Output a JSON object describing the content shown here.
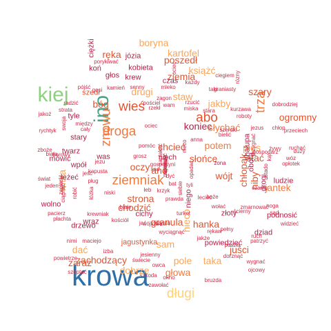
{
  "palette": {
    "blue": "#2f6fa8",
    "green": "#8fcf82",
    "teal": "#4aa389",
    "orange": "#f07a3f",
    "dark_orange": "#e3532f",
    "light_orange": "#f9a55a",
    "yellow": "#fcd277",
    "red": "#cf2b47",
    "dark_red": "#b01f45"
  },
  "words": [
    {
      "text": "krowa",
      "tier": 1,
      "color": "blue"
    },
    {
      "text": "ino",
      "tier": 2,
      "color": "teal",
      "vertical": true
    },
    {
      "text": "kiej",
      "tier": 2,
      "color": "green"
    },
    {
      "text": "długi",
      "tier": 3,
      "color": "yellow"
    },
    {
      "text": "droga",
      "tier": 3,
      "color": "orange"
    },
    {
      "text": "ziemniak",
      "tier": 3,
      "color": "orange"
    },
    {
      "text": "wieś",
      "tier": 3,
      "color": "dark_orange"
    },
    {
      "text": "abo",
      "tier": 3,
      "color": "dark_orange"
    },
    {
      "text": "trza",
      "tier": 3,
      "color": "orange",
      "vertical": true
    },
    {
      "text": "znowu",
      "tier": 3,
      "color": "orange",
      "vertical": true
    },
    {
      "text": "kartofel",
      "tier": 4,
      "color": "light_orange"
    },
    {
      "text": "boryna",
      "tier": 4,
      "color": "light_orange"
    },
    {
      "text": "ręka",
      "tier": 4,
      "color": "dark_orange"
    },
    {
      "text": "ziemia",
      "tier": 4,
      "color": "dark_orange"
    },
    {
      "text": "książć",
      "tier": 4,
      "color": "light_orange"
    },
    {
      "text": "poszedł",
      "tier": 4,
      "color": "dark_orange"
    },
    {
      "text": "bóg",
      "tier": 4,
      "color": "dark_orange"
    },
    {
      "text": "drugi",
      "tier": 4,
      "color": "light_orange"
    },
    {
      "text": "staw",
      "tier": 4,
      "color": "light_orange"
    },
    {
      "text": "słychać",
      "tier": 4,
      "color": "orange"
    },
    {
      "text": "szary",
      "tier": 4,
      "color": "dark_orange"
    },
    {
      "text": "ogromny",
      "tier": 4,
      "color": "dark_orange"
    },
    {
      "text": "jakby",
      "tier": 4,
      "color": "light_orange"
    },
    {
      "text": "koniec",
      "tier": 4,
      "color": "dark_red"
    },
    {
      "text": "potem",
      "tier": 4,
      "color": "orange"
    },
    {
      "text": "słońce",
      "tier": 4,
      "color": "dark_orange"
    },
    {
      "text": "chcieć",
      "tier": 4,
      "color": "dark_orange"
    },
    {
      "text": "pies",
      "tier": 4,
      "color": "light_orange"
    },
    {
      "text": "stać",
      "tier": 4,
      "color": "dark_orange"
    },
    {
      "text": "wójt",
      "tier": 4,
      "color": "dark_orange"
    },
    {
      "text": "oczy",
      "tier": 4,
      "color": "dark_orange"
    },
    {
      "text": "ano",
      "tier": 4,
      "color": "dark_orange"
    },
    {
      "text": "strona",
      "tier": 4,
      "color": "dark_orange"
    },
    {
      "text": "jantek",
      "tier": 4,
      "color": "orange"
    },
    {
      "text": "niby",
      "tier": 4,
      "color": "dark_orange",
      "vertical": true
    },
    {
      "text": "chodzić",
      "tier": 4,
      "color": "dark_orange"
    },
    {
      "text": "granula",
      "tier": 4,
      "color": "dark_orange"
    },
    {
      "text": "hanka",
      "tier": 4,
      "color": "dark_orange"
    },
    {
      "text": "głowa",
      "tier": 4,
      "color": "orange"
    },
    {
      "text": "pole",
      "tier": 4,
      "color": "light_orange"
    },
    {
      "text": "taka",
      "tier": 4,
      "color": "light_orange"
    },
    {
      "text": "zachodzący",
      "tier": 4,
      "color": "dark_orange"
    },
    {
      "text": "dobrze",
      "tier": 4,
      "color": "light_orange"
    },
    {
      "text": "dać",
      "tier": 4,
      "color": "light_orange"
    },
    {
      "text": "sam",
      "tier": 4,
      "color": "light_orange"
    },
    {
      "text": "zaraz",
      "tier": 4,
      "color": "dark_orange"
    },
    {
      "text": "juści",
      "tier": 4,
      "color": "dark_orange"
    },
    {
      "text": "jagustynka",
      "tier": 5,
      "color": "dark_orange"
    },
    {
      "text": "nieco",
      "tier": 4,
      "color": "light_orange",
      "vertical": true
    },
    {
      "text": "chłopak",
      "tier": 4,
      "color": "dark_orange",
      "vertical": true
    },
    {
      "text": "witka",
      "tier": 4,
      "color": "light_orange",
      "vertical": true
    },
    {
      "text": "koń",
      "tier": 5,
      "color": "dark_red"
    },
    {
      "text": "józia",
      "tier": 5,
      "color": "dark_red"
    },
    {
      "text": "kobieta",
      "tier": 5,
      "color": "dark_red"
    },
    {
      "text": "czas",
      "tier": 5,
      "color": "dark_red"
    },
    {
      "text": "krew",
      "tier": 5,
      "color": "dark_red"
    },
    {
      "text": "głos",
      "tier": 5,
      "color": "dark_red"
    },
    {
      "text": "stary",
      "tier": 5,
      "color": "dark_red"
    },
    {
      "text": "tyle",
      "tier": 5,
      "color": "dark_red"
    },
    {
      "text": "szedł",
      "tier": 5,
      "color": "dark_orange"
    },
    {
      "text": "twarz",
      "tier": 5,
      "color": "dark_red"
    },
    {
      "text": "mówić",
      "tier": 5,
      "color": "dark_red"
    },
    {
      "text": "wpół",
      "tier": 5,
      "color": "dark_red"
    },
    {
      "text": "was",
      "tier": 5,
      "color": "dark_red"
    },
    {
      "text": "drzewo",
      "tier": 5,
      "color": "dark_red"
    },
    {
      "text": "wolno",
      "tier": 5,
      "color": "dark_red"
    },
    {
      "text": "wraz",
      "tier": 5,
      "color": "dark_red"
    },
    {
      "text": "dziad",
      "tier": 5,
      "color": "dark_red"
    },
    {
      "text": "podnosić",
      "tier": 5,
      "color": "dark_red"
    },
    {
      "text": "powiedzieć",
      "tier": 5,
      "color": "dark_red"
    },
    {
      "text": "ludzie",
      "tier": 5,
      "color": "dark_red"
    },
    {
      "text": "cichy",
      "tier": 5,
      "color": "dark_red"
    },
    {
      "text": "złoty",
      "tier": 5,
      "color": "dark_red"
    },
    {
      "text": "leżeć",
      "tier": 5,
      "color": "dark_red"
    },
    {
      "text": "ciężki",
      "tier": 5,
      "color": "dark_red",
      "vertical": true
    },
    {
      "text": "ociec",
      "tier": 6,
      "color": "red",
      "vertical": true
    },
    {
      "text": "ciegiem",
      "tier": 6,
      "color": "red"
    },
    {
      "text": "rózny",
      "tier": 6,
      "color": "red",
      "vertical": true
    },
    {
      "text": "każdy",
      "tier": 6,
      "color": "red"
    },
    {
      "text": "taki",
      "tier": 6,
      "color": "red"
    },
    {
      "text": "porykiwać",
      "tier": 6,
      "color": "red"
    },
    {
      "text": "pościel",
      "tier": 6,
      "color": "red"
    },
    {
      "text": "mleko",
      "tier": 6,
      "color": "red"
    },
    {
      "text": "senny",
      "tier": 6,
      "color": "red"
    },
    {
      "text": "kamień",
      "tier": 6,
      "color": "red"
    },
    {
      "text": "gęsi",
      "tier": 6,
      "color": "red"
    },
    {
      "text": "pójść",
      "tier": 6,
      "color": "red"
    },
    {
      "text": "radzić",
      "tier": 6,
      "color": "red"
    },
    {
      "text": "strata",
      "tier": 6,
      "color": "red"
    },
    {
      "text": "jakoż",
      "tier": 6,
      "color": "red"
    },
    {
      "text": "swoja",
      "tier": 6,
      "color": "red",
      "vertical": true
    },
    {
      "text": "między",
      "tier": 6,
      "color": "red"
    },
    {
      "text": "rychtyk",
      "tier": 6,
      "color": "red"
    },
    {
      "text": "cały",
      "tier": 6,
      "color": "red"
    },
    {
      "text": "zboże",
      "tier": 6,
      "color": "red"
    },
    {
      "text": "biała",
      "tier": 6,
      "color": "red"
    },
    {
      "text": "borowy",
      "tier": 6,
      "color": "red"
    },
    {
      "text": "jezu",
      "tier": 6,
      "color": "red"
    },
    {
      "text": "jeść",
      "tier": 6,
      "color": "red"
    },
    {
      "text": "kapusta",
      "tier": 6,
      "color": "red"
    },
    {
      "text": "pług",
      "tier": 6,
      "color": "red"
    },
    {
      "text": "świat",
      "tier": 6,
      "color": "red"
    },
    {
      "text": "jeden",
      "tier": 6,
      "color": "red"
    },
    {
      "text": "zapłacić",
      "tier": 6,
      "color": "red",
      "vertical": true
    },
    {
      "text": "ciągnąć",
      "tier": 6,
      "color": "red",
      "vertical": true
    },
    {
      "text": "robić",
      "tier": 6,
      "color": "red",
      "vertical": true
    },
    {
      "text": "łóżka",
      "tier": 6,
      "color": "red",
      "vertical": true
    },
    {
      "text": "niski",
      "tier": 6,
      "color": "red"
    },
    {
      "text": "białe",
      "tier": 6,
      "color": "red"
    },
    {
      "text": "krewniak",
      "tier": 6,
      "color": "red"
    },
    {
      "text": "pacierz",
      "tier": 6,
      "color": "red"
    },
    {
      "text": "płachta",
      "tier": 6,
      "color": "red"
    },
    {
      "text": "kościół",
      "tier": 6,
      "color": "red"
    },
    {
      "text": "nimi",
      "tier": 6,
      "color": "red"
    },
    {
      "text": "maciejo",
      "tier": 6,
      "color": "red"
    },
    {
      "text": "powietrze",
      "tier": 6,
      "color": "red"
    },
    {
      "text": "izba",
      "tier": 6,
      "color": "red"
    },
    {
      "text": "szeptać",
      "tier": 6,
      "color": "red"
    },
    {
      "text": "świecie",
      "tier": 6,
      "color": "red"
    },
    {
      "text": "jesienny",
      "tier": 6,
      "color": "red"
    },
    {
      "text": "owca",
      "tier": 6,
      "color": "red"
    },
    {
      "text": "zawołać",
      "tier": 6,
      "color": "red"
    },
    {
      "text": "szkoda",
      "tier": 6,
      "color": "red"
    },
    {
      "text": "okno",
      "tier": 6,
      "color": "red"
    },
    {
      "text": "dorznąć",
      "tier": 6,
      "color": "red"
    },
    {
      "text": "ojcowy",
      "tier": 6,
      "color": "red"
    },
    {
      "text": "bruzda",
      "tier": 6,
      "color": "red"
    },
    {
      "text": "wygnać",
      "tier": 6,
      "color": "red"
    },
    {
      "text": "pełny",
      "tier": 6,
      "color": "red"
    },
    {
      "text": "poszła",
      "tier": 6,
      "color": "red"
    },
    {
      "text": "patrzyć",
      "tier": 6,
      "color": "red"
    },
    {
      "text": "ruch",
      "tier": 6,
      "color": "red"
    },
    {
      "text": "widzieć",
      "tier": 6,
      "color": "red"
    },
    {
      "text": "sąd",
      "tier": 6,
      "color": "red"
    },
    {
      "text": "ścierny",
      "tier": 6,
      "color": "red"
    },
    {
      "text": "wołać",
      "tier": 6,
      "color": "red"
    },
    {
      "text": "zmarnować",
      "tier": 6,
      "color": "red"
    },
    {
      "text": "noga",
      "tier": 6,
      "color": "red"
    },
    {
      "text": "lecieć",
      "tier": 6,
      "color": "red"
    },
    {
      "text": "boże",
      "tier": 6,
      "color": "red"
    },
    {
      "text": "rękaw",
      "tier": 6,
      "color": "red"
    },
    {
      "text": "jakże",
      "tier": 6,
      "color": "red"
    },
    {
      "text": "wyciągnąć",
      "tier": 6,
      "color": "red"
    },
    {
      "text": "trzysta",
      "tier": 6,
      "color": "red"
    },
    {
      "text": "wójtowa",
      "tier": 6,
      "color": "red"
    },
    {
      "text": "turkot",
      "tier": 6,
      "color": "red"
    },
    {
      "text": "jać",
      "tier": 6,
      "color": "red"
    },
    {
      "text": "prawda",
      "tier": 6,
      "color": "red"
    },
    {
      "text": "krzyk",
      "tier": 6,
      "color": "red"
    },
    {
      "text": "łeb",
      "tier": 6,
      "color": "red"
    },
    {
      "text": "bat",
      "tier": 6,
      "color": "red"
    },
    {
      "text": "dyć",
      "tier": 6,
      "color": "red"
    },
    {
      "text": "tyli",
      "tier": 6,
      "color": "red"
    },
    {
      "text": "gospodyni",
      "tier": 6,
      "color": "red"
    },
    {
      "text": "sad",
      "tier": 6,
      "color": "red"
    },
    {
      "text": "grosz",
      "tier": 6,
      "color": "red"
    },
    {
      "text": "pomóc",
      "tier": 6,
      "color": "red"
    },
    {
      "text": "ociec",
      "tier": 6,
      "color": "red"
    },
    {
      "text": "miska",
      "tier": 6,
      "color": "red"
    },
    {
      "text": "rzekł",
      "tier": 6,
      "color": "red"
    },
    {
      "text": "wam",
      "tier": 6,
      "color": "red"
    },
    {
      "text": "rzucić",
      "tier": 6,
      "color": "red"
    },
    {
      "text": "zagon",
      "tier": 6,
      "color": "red"
    },
    {
      "text": "graniasty",
      "tier": 6,
      "color": "red"
    },
    {
      "text": "kurzawa",
      "tier": 6,
      "color": "red"
    },
    {
      "text": "roboty",
      "tier": 6,
      "color": "red"
    },
    {
      "text": "dobrodziej",
      "tier": 6,
      "color": "red"
    },
    {
      "text": "szeroki",
      "tier": 6,
      "color": "red"
    },
    {
      "text": "jezus",
      "tier": 6,
      "color": "red"
    },
    {
      "text": "chłop",
      "tier": 6,
      "color": "red"
    },
    {
      "text": "przeciech",
      "tier": 6,
      "color": "red"
    },
    {
      "text": "bielić",
      "tier": 6,
      "color": "red"
    },
    {
      "text": "żywy",
      "tier": 6,
      "color": "red"
    },
    {
      "text": "ruchać",
      "tier": 6,
      "color": "red"
    },
    {
      "text": "duży",
      "tier": 6,
      "color": "red"
    },
    {
      "text": "opłotek",
      "tier": 6,
      "color": "red"
    },
    {
      "text": "wóz",
      "tier": 6,
      "color": "red"
    },
    {
      "text": "gospodarz",
      "tier": 6,
      "color": "red"
    },
    {
      "text": "czarny",
      "tier": 6,
      "color": "red"
    },
    {
      "text": "żona",
      "tier": 6,
      "color": "dark_red"
    },
    {
      "text": "anna",
      "tier": 6,
      "color": "red"
    },
    {
      "text": "stara",
      "tier": 6,
      "color": "red"
    },
    {
      "text": "niech",
      "tier": 5,
      "color": "dark_red"
    },
    {
      "text": "chałupa",
      "tier": 5,
      "color": "dark_red",
      "vertical": true
    },
    {
      "text": "obora",
      "tier": 5,
      "color": "dark_red",
      "vertical": true
    },
    {
      "text": "drogi",
      "tier": 5,
      "color": "dark_red",
      "vertical": true
    },
    {
      "text": "niego",
      "tier": 5,
      "color": "dark_red",
      "vertical": true
    },
    {
      "text": "nieco",
      "tier": 6,
      "color": "red",
      "vertical": true
    },
    {
      "text": "opadać",
      "tier": 6,
      "color": "red",
      "vertical": true
    },
    {
      "text": "siebie",
      "tier": 6,
      "color": "red",
      "vertical": true
    },
    {
      "text": "przygnać",
      "tier": 6,
      "color": "red",
      "vertical": true
    },
    {
      "text": "stado",
      "tier": 6,
      "color": "red",
      "vertical": true
    },
    {
      "text": "kąt",
      "tier": 6,
      "color": "red",
      "vertical": true
    },
    {
      "text": "zapłakać",
      "tier": 6,
      "color": "red",
      "vertical": true
    },
    {
      "text": "pirog",
      "tier": 6,
      "color": "red",
      "vertical": true
    },
    {
      "text": "zamoczyć",
      "tier": 6,
      "color": "red",
      "vertical": true
    },
    {
      "text": "zżywacz",
      "tier": 6,
      "color": "red",
      "vertical": true
    },
    {
      "text": "matka",
      "tier": 6,
      "color": "red",
      "vertical": true
    }
  ]
}
